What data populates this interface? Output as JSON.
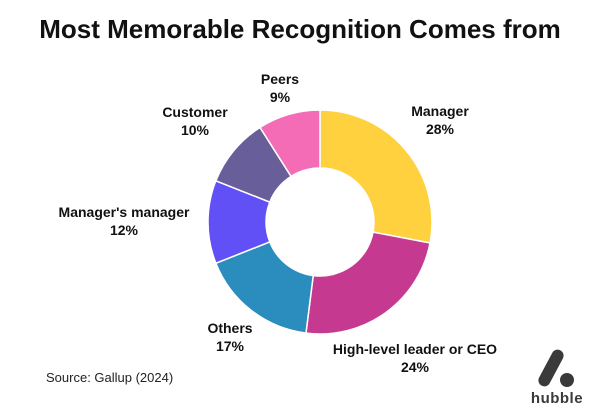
{
  "chart_data": {
    "type": "pie",
    "title": "Most Memorable Recognition Comes from",
    "slices": [
      {
        "label": "Manager",
        "value": 28,
        "value_label": "28%",
        "color": "#FFD13F"
      },
      {
        "label": "High-level leader or CEO",
        "value": 24,
        "value_label": "24%",
        "color": "#C53A90"
      },
      {
        "label": "Others",
        "value": 17,
        "value_label": "17%",
        "color": "#2A8DBE"
      },
      {
        "label": "Manager's manager",
        "value": 12,
        "value_label": "12%",
        "color": "#6150F5"
      },
      {
        "label": "Customer",
        "value": 10,
        "value_label": "10%",
        "color": "#675E9A"
      },
      {
        "label": "Peers",
        "value": 9,
        "value_label": "9%",
        "color": "#F56CB6"
      }
    ],
    "donut": true
  },
  "footer": {
    "source": "Source: Gallup (2024)",
    "brand": "hubble",
    "brand_icon": "hubble-logo-icon"
  }
}
